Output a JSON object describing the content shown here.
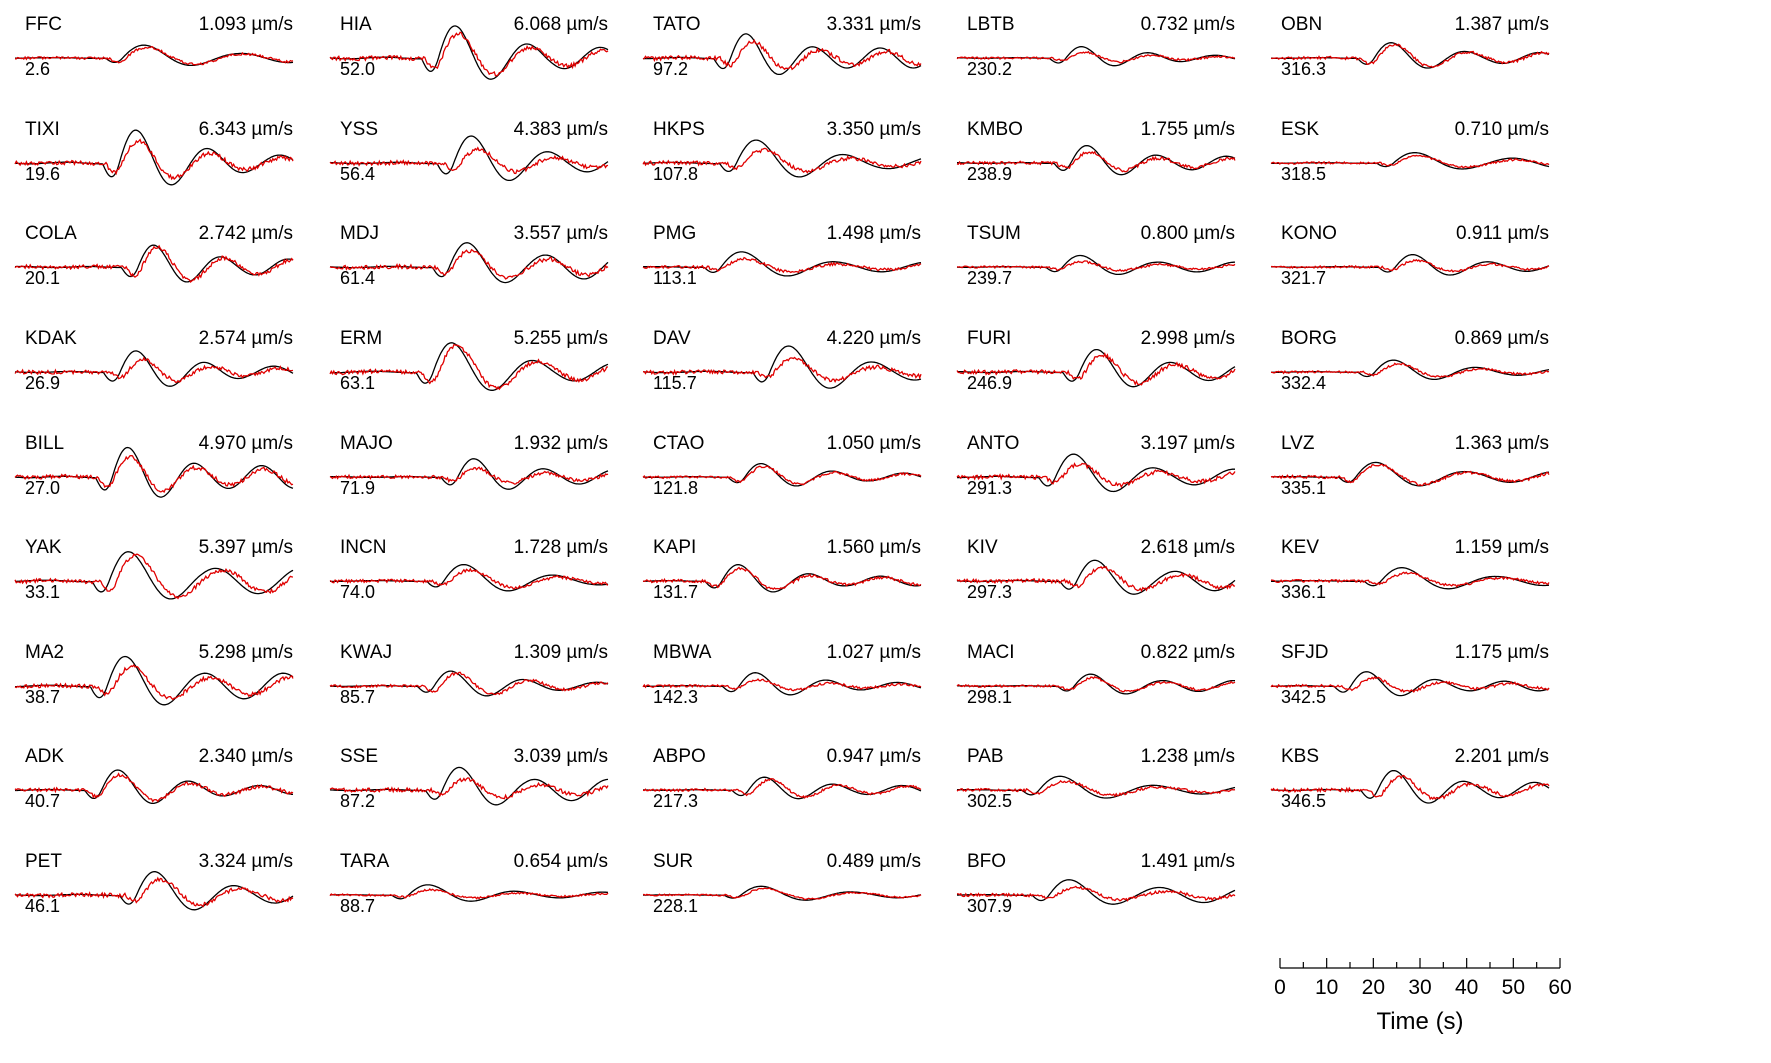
{
  "chart_data": {
    "type": "line",
    "description_free": true,
    "series_legend": [
      {
        "name": "",
        "color": "#000000"
      },
      {
        "name": "",
        "color": "#e00000"
      }
    ],
    "layout_grid": {
      "columns": 5,
      "rows": 9
    },
    "amplitude_unit": "µm/s",
    "time_axis": {
      "xlabel": "Time (s)",
      "ticks": [
        "0",
        "10",
        "20",
        "30",
        "40",
        "50",
        "60"
      ],
      "xlim": [
        0,
        60
      ],
      "minor_tick_step": 5
    },
    "stations": [
      {
        "name": "FFC",
        "amplitude": "1.093 µm/s",
        "azimuth": "2.6",
        "peak": 1.093,
        "col": 0,
        "row": 0
      },
      {
        "name": "TIXI",
        "amplitude": "6.343 µm/s",
        "azimuth": "19.6",
        "peak": 6.343,
        "col": 0,
        "row": 1
      },
      {
        "name": "COLA",
        "amplitude": "2.742 µm/s",
        "azimuth": "20.1",
        "peak": 2.742,
        "col": 0,
        "row": 2
      },
      {
        "name": "KDAK",
        "amplitude": "2.574 µm/s",
        "azimuth": "26.9",
        "peak": 2.574,
        "col": 0,
        "row": 3
      },
      {
        "name": "BILL",
        "amplitude": "4.970 µm/s",
        "azimuth": "27.0",
        "peak": 4.97,
        "col": 0,
        "row": 4
      },
      {
        "name": "YAK",
        "amplitude": "5.397 µm/s",
        "azimuth": "33.1",
        "peak": 5.397,
        "col": 0,
        "row": 5
      },
      {
        "name": "MA2",
        "amplitude": "5.298 µm/s",
        "azimuth": "38.7",
        "peak": 5.298,
        "col": 0,
        "row": 6
      },
      {
        "name": "ADK",
        "amplitude": "2.340 µm/s",
        "azimuth": "40.7",
        "peak": 2.34,
        "col": 0,
        "row": 7
      },
      {
        "name": "PET",
        "amplitude": "3.324 µm/s",
        "azimuth": "46.1",
        "peak": 3.324,
        "col": 0,
        "row": 8
      },
      {
        "name": "HIA",
        "amplitude": "6.068 µm/s",
        "azimuth": "52.0",
        "peak": 6.068,
        "col": 1,
        "row": 0
      },
      {
        "name": "YSS",
        "amplitude": "4.383 µm/s",
        "azimuth": "56.4",
        "peak": 4.383,
        "col": 1,
        "row": 1
      },
      {
        "name": "MDJ",
        "amplitude": "3.557 µm/s",
        "azimuth": "61.4",
        "peak": 3.557,
        "col": 1,
        "row": 2
      },
      {
        "name": "ERM",
        "amplitude": "5.255 µm/s",
        "azimuth": "63.1",
        "peak": 5.255,
        "col": 1,
        "row": 3
      },
      {
        "name": "MAJO",
        "amplitude": "1.932 µm/s",
        "azimuth": "71.9",
        "peak": 1.932,
        "col": 1,
        "row": 4
      },
      {
        "name": "INCN",
        "amplitude": "1.728 µm/s",
        "azimuth": "74.0",
        "peak": 1.728,
        "col": 1,
        "row": 5
      },
      {
        "name": "KWAJ",
        "amplitude": "1.309 µm/s",
        "azimuth": "85.7",
        "peak": 1.309,
        "col": 1,
        "row": 6
      },
      {
        "name": "SSE",
        "amplitude": "3.039 µm/s",
        "azimuth": "87.2",
        "peak": 3.039,
        "col": 1,
        "row": 7
      },
      {
        "name": "TARA",
        "amplitude": "0.654 µm/s",
        "azimuth": "88.7",
        "peak": 0.654,
        "col": 1,
        "row": 8
      },
      {
        "name": "TATO",
        "amplitude": "3.331 µm/s",
        "azimuth": "97.2",
        "peak": 3.331,
        "col": 2,
        "row": 0
      },
      {
        "name": "HKPS",
        "amplitude": "3.350 µm/s",
        "azimuth": "107.8",
        "peak": 3.35,
        "col": 2,
        "row": 1
      },
      {
        "name": "PMG",
        "amplitude": "1.498 µm/s",
        "azimuth": "113.1",
        "peak": 1.498,
        "col": 2,
        "row": 2
      },
      {
        "name": "DAV",
        "amplitude": "4.220 µm/s",
        "azimuth": "115.7",
        "peak": 4.22,
        "col": 2,
        "row": 3
      },
      {
        "name": "CTAO",
        "amplitude": "1.050 µm/s",
        "azimuth": "121.8",
        "peak": 1.05,
        "col": 2,
        "row": 4
      },
      {
        "name": "KAPI",
        "amplitude": "1.560 µm/s",
        "azimuth": "131.7",
        "peak": 1.56,
        "col": 2,
        "row": 5
      },
      {
        "name": "MBWA",
        "amplitude": "1.027 µm/s",
        "azimuth": "142.3",
        "peak": 1.027,
        "col": 2,
        "row": 6
      },
      {
        "name": "ABPO",
        "amplitude": "0.947 µm/s",
        "azimuth": "217.3",
        "peak": 0.947,
        "col": 2,
        "row": 7
      },
      {
        "name": "SUR",
        "amplitude": "0.489 µm/s",
        "azimuth": "228.1",
        "peak": 0.489,
        "col": 2,
        "row": 8
      },
      {
        "name": "LBTB",
        "amplitude": "0.732 µm/s",
        "azimuth": "230.2",
        "peak": 0.732,
        "col": 3,
        "row": 0
      },
      {
        "name": "KMBO",
        "amplitude": "1.755 µm/s",
        "azimuth": "238.9",
        "peak": 1.755,
        "col": 3,
        "row": 1
      },
      {
        "name": "TSUM",
        "amplitude": "0.800 µm/s",
        "azimuth": "239.7",
        "peak": 0.8,
        "col": 3,
        "row": 2
      },
      {
        "name": "FURI",
        "amplitude": "2.998 µm/s",
        "azimuth": "246.9",
        "peak": 2.998,
        "col": 3,
        "row": 3
      },
      {
        "name": "ANTO",
        "amplitude": "3.197 µm/s",
        "azimuth": "291.3",
        "peak": 3.197,
        "col": 3,
        "row": 4
      },
      {
        "name": "KIV",
        "amplitude": "2.618 µm/s",
        "azimuth": "297.3",
        "peak": 2.618,
        "col": 3,
        "row": 5
      },
      {
        "name": "MACI",
        "amplitude": "0.822 µm/s",
        "azimuth": "298.1",
        "peak": 0.822,
        "col": 3,
        "row": 6
      },
      {
        "name": "PAB",
        "amplitude": "1.238 µm/s",
        "azimuth": "302.5",
        "peak": 1.238,
        "col": 3,
        "row": 7
      },
      {
        "name": "BFO",
        "amplitude": "1.491 µm/s",
        "azimuth": "307.9",
        "peak": 1.491,
        "col": 3,
        "row": 8
      },
      {
        "name": "OBN",
        "amplitude": "1.387 µm/s",
        "azimuth": "316.3",
        "peak": 1.387,
        "col": 4,
        "row": 0
      },
      {
        "name": "ESK",
        "amplitude": "0.710 µm/s",
        "azimuth": "318.5",
        "peak": 0.71,
        "col": 4,
        "row": 1
      },
      {
        "name": "KONO",
        "amplitude": "0.911 µm/s",
        "azimuth": "321.7",
        "peak": 0.911,
        "col": 4,
        "row": 2
      },
      {
        "name": "BORG",
        "amplitude": "0.869 µm/s",
        "azimuth": "332.4",
        "peak": 0.869,
        "col": 4,
        "row": 3
      },
      {
        "name": "LVZ",
        "amplitude": "1.363 µm/s",
        "azimuth": "335.1",
        "peak": 1.363,
        "col": 4,
        "row": 4
      },
      {
        "name": "KEV",
        "amplitude": "1.159 µm/s",
        "azimuth": "336.1",
        "peak": 1.159,
        "col": 4,
        "row": 5
      },
      {
        "name": "SFJD",
        "amplitude": "1.175 µm/s",
        "azimuth": "342.5",
        "peak": 1.175,
        "col": 4,
        "row": 6
      },
      {
        "name": "KBS",
        "amplitude": "2.201 µm/s",
        "azimuth": "346.5",
        "peak": 2.201,
        "col": 4,
        "row": 7
      }
    ]
  }
}
